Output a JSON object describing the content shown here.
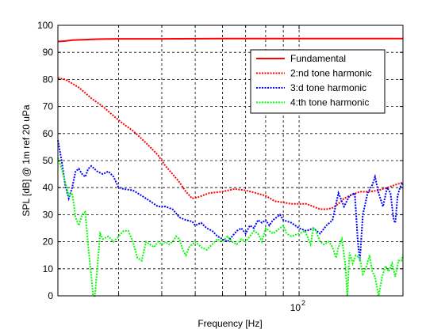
{
  "chart_data": {
    "type": "line",
    "title": "",
    "xlabel": "Frequency [Hz]",
    "ylabel": "SPL [dB] @ 1m ref 20 uPa",
    "x_scale": "log",
    "xlim": [
      20,
      200
    ],
    "ylim": [
      0,
      100
    ],
    "x_tick_labels": [
      {
        "base": "10",
        "exp": "2",
        "value": 100
      }
    ],
    "y_ticks": [
      0,
      10,
      20,
      30,
      40,
      50,
      60,
      70,
      80,
      90,
      100
    ],
    "grid": true,
    "grid_style": "dashed",
    "legend_position": "top-right",
    "series": [
      {
        "name": "Fundamental",
        "color": "#ff0000",
        "style": "solid",
        "points": [
          [
            20,
            94
          ],
          [
            21,
            94.2
          ],
          [
            22,
            94.5
          ],
          [
            24,
            94.7
          ],
          [
            26,
            94.9
          ],
          [
            30,
            95
          ],
          [
            40,
            95
          ],
          [
            60,
            95.1
          ],
          [
            100,
            95.1
          ],
          [
            150,
            95.1
          ],
          [
            200,
            95.1
          ]
        ]
      },
      {
        "name": "2:nd tone harmonic",
        "color": "#ff0000",
        "style": "dotted",
        "points": [
          [
            20,
            80.5
          ],
          [
            21,
            80
          ],
          [
            22,
            78.5
          ],
          [
            23,
            77
          ],
          [
            24,
            75
          ],
          [
            25,
            73
          ],
          [
            27,
            70
          ],
          [
            29,
            66.5
          ],
          [
            31,
            63.5
          ],
          [
            33,
            61
          ],
          [
            35,
            58
          ],
          [
            37,
            55
          ],
          [
            39,
            52
          ],
          [
            41,
            48
          ],
          [
            43,
            45
          ],
          [
            45,
            42
          ],
          [
            47,
            38.5
          ],
          [
            49,
            36
          ],
          [
            51,
            36.5
          ],
          [
            55,
            38
          ],
          [
            60,
            38.5
          ],
          [
            65,
            39.5
          ],
          [
            70,
            39
          ],
          [
            75,
            38
          ],
          [
            80,
            37
          ],
          [
            85,
            35
          ],
          [
            90,
            34.5
          ],
          [
            95,
            34
          ],
          [
            100,
            34
          ],
          [
            105,
            34
          ],
          [
            110,
            33
          ],
          [
            115,
            32
          ],
          [
            120,
            32
          ],
          [
            125,
            32.5
          ],
          [
            130,
            34
          ],
          [
            135,
            36
          ],
          [
            140,
            37
          ],
          [
            150,
            38.5
          ],
          [
            160,
            38.5
          ],
          [
            170,
            39
          ],
          [
            180,
            40
          ],
          [
            190,
            41
          ],
          [
            200,
            42
          ]
        ]
      },
      {
        "name": "3:d tone harmonic",
        "color": "#0000ff",
        "style": "dotted",
        "points": [
          [
            20,
            57.5
          ],
          [
            20.5,
            50
          ],
          [
            21,
            41
          ],
          [
            21.5,
            36
          ],
          [
            22,
            40
          ],
          [
            22.5,
            46
          ],
          [
            23,
            47
          ],
          [
            23.5,
            45
          ],
          [
            24,
            44
          ],
          [
            24.5,
            47
          ],
          [
            25,
            48
          ],
          [
            26,
            46
          ],
          [
            27,
            45
          ],
          [
            28,
            46
          ],
          [
            29,
            44
          ],
          [
            30,
            40
          ],
          [
            31,
            39.5
          ],
          [
            33,
            39
          ],
          [
            35,
            37
          ],
          [
            37,
            35
          ],
          [
            39,
            33
          ],
          [
            41,
            33
          ],
          [
            43,
            32
          ],
          [
            45,
            29
          ],
          [
            47,
            28
          ],
          [
            49,
            27.5
          ],
          [
            50,
            26
          ],
          [
            52,
            27
          ],
          [
            54,
            25
          ],
          [
            56,
            24
          ],
          [
            58,
            22
          ],
          [
            60,
            21
          ],
          [
            62,
            20
          ],
          [
            64,
            22
          ],
          [
            66,
            24
          ],
          [
            68,
            25
          ],
          [
            70,
            23
          ],
          [
            72,
            26
          ],
          [
            74,
            25
          ],
          [
            76,
            28
          ],
          [
            78,
            27
          ],
          [
            80,
            28
          ],
          [
            82,
            26
          ],
          [
            84,
            28
          ],
          [
            86,
            29
          ],
          [
            88,
            30
          ],
          [
            90,
            28
          ],
          [
            95,
            27
          ],
          [
            100,
            25
          ],
          [
            105,
            24
          ],
          [
            110,
            25
          ],
          [
            115,
            23
          ],
          [
            120,
            26
          ],
          [
            125,
            28
          ],
          [
            130,
            38
          ],
          [
            135,
            33
          ],
          [
            140,
            37
          ],
          [
            145,
            38
          ],
          [
            148,
            20
          ],
          [
            150,
            13
          ],
          [
            153,
            30
          ],
          [
            158,
            38
          ],
          [
            163,
            41
          ],
          [
            166,
            44
          ],
          [
            170,
            38
          ],
          [
            175,
            33
          ],
          [
            180,
            40
          ],
          [
            184,
            38
          ],
          [
            188,
            28
          ],
          [
            190,
            27
          ],
          [
            193,
            37
          ],
          [
            196,
            40
          ],
          [
            200,
            42
          ]
        ]
      },
      {
        "name": "4:th tone harmonic",
        "color": "#00ff00",
        "style": "dotted",
        "points": [
          [
            20,
            51
          ],
          [
            20.5,
            47
          ],
          [
            21,
            42
          ],
          [
            21.5,
            37
          ],
          [
            22,
            38
          ],
          [
            22.5,
            29
          ],
          [
            23,
            26
          ],
          [
            23.5,
            30
          ],
          [
            24,
            31
          ],
          [
            24.5,
            18
          ],
          [
            25,
            7
          ],
          [
            25.3,
            0
          ],
          [
            25.6,
            0
          ],
          [
            26,
            10
          ],
          [
            26.5,
            23
          ],
          [
            27,
            21
          ],
          [
            28,
            22
          ],
          [
            29,
            20
          ],
          [
            30,
            22
          ],
          [
            31,
            24
          ],
          [
            32,
            24
          ],
          [
            33,
            20
          ],
          [
            34,
            14
          ],
          [
            35,
            13
          ],
          [
            36,
            20
          ],
          [
            37,
            19
          ],
          [
            38,
            18
          ],
          [
            39,
            20
          ],
          [
            40,
            19
          ],
          [
            41,
            20
          ],
          [
            42,
            19
          ],
          [
            43,
            20
          ],
          [
            44,
            22
          ],
          [
            45,
            21
          ],
          [
            46,
            17
          ],
          [
            47,
            15
          ],
          [
            48,
            18
          ],
          [
            50,
            20
          ],
          [
            52,
            18
          ],
          [
            54,
            17
          ],
          [
            56,
            19
          ],
          [
            58,
            21
          ],
          [
            60,
            20
          ],
          [
            62,
            22
          ],
          [
            64,
            20
          ],
          [
            66,
            19
          ],
          [
            68,
            21
          ],
          [
            70,
            20
          ],
          [
            72,
            22
          ],
          [
            74,
            24
          ],
          [
            76,
            23
          ],
          [
            78,
            20
          ],
          [
            80,
            25
          ],
          [
            82,
            24
          ],
          [
            84,
            23
          ],
          [
            86,
            24
          ],
          [
            88,
            25
          ],
          [
            90,
            26
          ],
          [
            92,
            23
          ],
          [
            95,
            22
          ],
          [
            100,
            23
          ],
          [
            104,
            24
          ],
          [
            108,
            19
          ],
          [
            110,
            25
          ],
          [
            112,
            24
          ],
          [
            115,
            20
          ],
          [
            118,
            19
          ],
          [
            122,
            20
          ],
          [
            125,
            18
          ],
          [
            128,
            14
          ],
          [
            130,
            18
          ],
          [
            133,
            21
          ],
          [
            136,
            12
          ],
          [
            138,
            0
          ],
          [
            140,
            16
          ],
          [
            143,
            12
          ],
          [
            146,
            15
          ],
          [
            150,
            14
          ],
          [
            153,
            8
          ],
          [
            156,
            10
          ],
          [
            160,
            15
          ],
          [
            163,
            9
          ],
          [
            166,
            7
          ],
          [
            170,
            0
          ],
          [
            174,
            7
          ],
          [
            178,
            11
          ],
          [
            182,
            9
          ],
          [
            186,
            12
          ],
          [
            190,
            7
          ],
          [
            194,
            13
          ],
          [
            198,
            13
          ],
          [
            200,
            15
          ]
        ]
      }
    ]
  }
}
